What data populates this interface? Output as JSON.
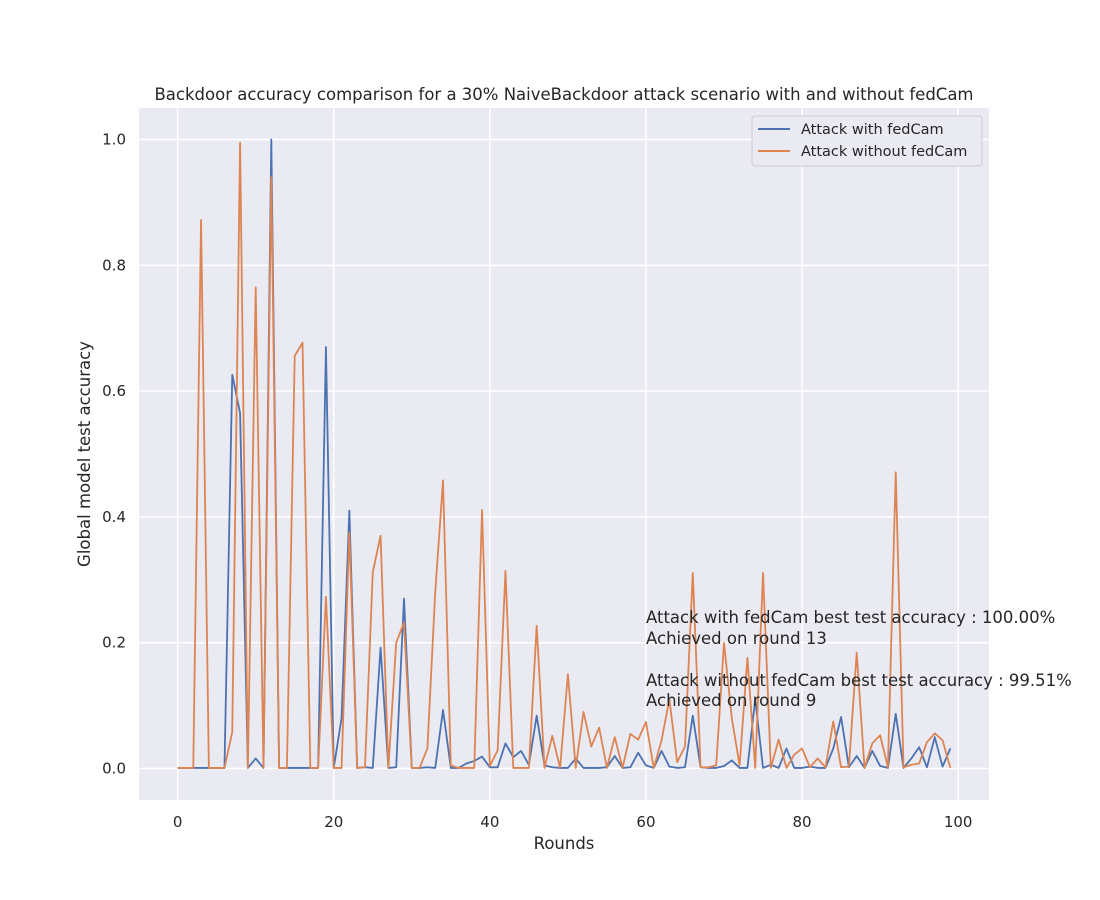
{
  "chart_data": {
    "type": "line",
    "title": "Backdoor accuracy comparison for a 30% NaiveBackdoor attack scenario with and without fedCam",
    "xlabel": "Rounds",
    "ylabel": "Global model test accuracy",
    "xlim": [
      -4.95,
      103.95
    ],
    "ylim": [
      -0.05,
      1.05
    ],
    "xticks": [
      0,
      20,
      40,
      60,
      80,
      100
    ],
    "yticks": [
      0.0,
      0.2,
      0.4,
      0.6,
      0.8,
      1.0
    ],
    "xtick_labels": [
      "0",
      "20",
      "40",
      "60",
      "80",
      "100"
    ],
    "ytick_labels": [
      "0.0",
      "0.2",
      "0.4",
      "0.6",
      "0.8",
      "1.0"
    ],
    "grid": true,
    "background": "#eaeaf2",
    "legend_position": "upper right",
    "x": [
      0,
      1,
      2,
      3,
      4,
      5,
      6,
      7,
      8,
      9,
      10,
      11,
      12,
      13,
      14,
      15,
      16,
      17,
      18,
      19,
      20,
      21,
      22,
      23,
      24,
      25,
      26,
      27,
      28,
      29,
      30,
      31,
      32,
      33,
      34,
      35,
      36,
      37,
      38,
      39,
      40,
      41,
      42,
      43,
      44,
      45,
      46,
      47,
      48,
      49,
      50,
      51,
      52,
      53,
      54,
      55,
      56,
      57,
      58,
      59,
      60,
      61,
      62,
      63,
      64,
      65,
      66,
      67,
      68,
      69,
      70,
      71,
      72,
      73,
      74,
      75,
      76,
      77,
      78,
      79,
      80,
      81,
      82,
      83,
      84,
      85,
      86,
      87,
      88,
      89,
      90,
      91,
      92,
      93,
      94,
      95,
      96,
      97,
      98,
      99
    ],
    "series": [
      {
        "name": "Attack with fedCam",
        "color": "#4c72b0",
        "values": [
          0.001,
          0.001,
          0.001,
          0.001,
          0.001,
          0.001,
          0.001,
          0.626,
          0.565,
          0.001,
          0.016,
          0.001,
          1.0,
          0.001,
          0.001,
          0.001,
          0.001,
          0.001,
          0.001,
          0.67,
          0.001,
          0.08,
          0.41,
          0.001,
          0.002,
          0.001,
          0.192,
          0.001,
          0.002,
          0.27,
          0.001,
          0.001,
          0.002,
          0.001,
          0.093,
          0.001,
          0.001,
          0.008,
          0.012,
          0.019,
          0.002,
          0.002,
          0.04,
          0.018,
          0.028,
          0.006,
          0.084,
          0.005,
          0.002,
          0.001,
          0.001,
          0.016,
          0.001,
          0.001,
          0.001,
          0.002,
          0.02,
          0.001,
          0.002,
          0.025,
          0.005,
          0.001,
          0.028,
          0.003,
          0.001,
          0.002,
          0.084,
          0.002,
          0.001,
          0.001,
          0.004,
          0.013,
          0.001,
          0.001,
          0.11,
          0.001,
          0.006,
          0.001,
          0.032,
          0.001,
          0.001,
          0.003,
          0.001,
          0.001,
          0.032,
          0.082,
          0.002,
          0.02,
          0.001,
          0.028,
          0.004,
          0.001,
          0.087,
          0.001,
          0.016,
          0.034,
          0.002,
          0.05,
          0.003,
          0.032
        ]
      },
      {
        "name": "Attack without fedCam",
        "color": "#dd8452",
        "values": [
          0.001,
          0.001,
          0.001,
          0.872,
          0.001,
          0.001,
          0.001,
          0.058,
          0.995,
          0.001,
          0.765,
          0.001,
          0.94,
          0.001,
          0.001,
          0.656,
          0.677,
          0.001,
          0.001,
          0.273,
          0.001,
          0.001,
          0.375,
          0.001,
          0.002,
          0.312,
          0.37,
          0.001,
          0.2,
          0.232,
          0.001,
          0.001,
          0.032,
          0.28,
          0.458,
          0.005,
          0.001,
          0.001,
          0.001,
          0.411,
          0.004,
          0.029,
          0.314,
          0.001,
          0.001,
          0.001,
          0.227,
          0.001,
          0.052,
          0.001,
          0.15,
          0.001,
          0.09,
          0.035,
          0.065,
          0.001,
          0.05,
          0.001,
          0.055,
          0.046,
          0.074,
          0.001,
          0.045,
          0.11,
          0.01,
          0.035,
          0.311,
          0.002,
          0.002,
          0.005,
          0.2,
          0.08,
          0.005,
          0.176,
          0.001,
          0.311,
          0.001,
          0.046,
          0.001,
          0.022,
          0.032,
          0.002,
          0.016,
          0.002,
          0.075,
          0.002,
          0.003,
          0.184,
          0.001,
          0.04,
          0.053,
          0.002,
          0.471,
          0.002,
          0.006,
          0.008,
          0.042,
          0.056,
          0.045,
          0.001
        ]
      }
    ],
    "annotations": [
      "Attack with fedCam best test accuracy : 100.00%",
      "Achieved on round 13",
      "Attack without fedCam best test accuracy : 99.51%",
      "Achieved on round 9"
    ]
  }
}
